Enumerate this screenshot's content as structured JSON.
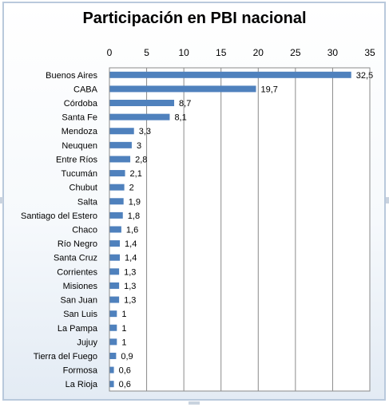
{
  "chart_data": {
    "type": "bar",
    "orientation": "horizontal",
    "title": "Participación en PBI nacional",
    "xlabel": "",
    "ylabel": "",
    "xlim": [
      0,
      35
    ],
    "x_ticks": [
      "0",
      "5",
      "10",
      "15",
      "20",
      "25",
      "30",
      "35"
    ],
    "x_axis_position": "top",
    "grid": true,
    "legend": "none",
    "bar_color": "#4f81bd",
    "categories": [
      "Buenos Aires",
      "CABA",
      "Córdoba",
      "Santa Fe",
      "Mendoza",
      "Neuquen",
      "Entre Ríos",
      "Tucumán",
      "Chubut",
      "Salta",
      "Santiago del Estero",
      "Chaco",
      "Río Negro",
      "Santa Cruz",
      "Corrientes",
      "Misiones",
      "San Juan",
      "San Luis",
      "La Pampa",
      "Jujuy",
      "Tierra del Fuego",
      "Formosa",
      "La Rioja"
    ],
    "values": [
      32.5,
      19.7,
      8.7,
      8.1,
      3.3,
      3,
      2.8,
      2.1,
      2,
      1.9,
      1.8,
      1.6,
      1.4,
      1.4,
      1.3,
      1.3,
      1.3,
      1,
      1,
      1,
      0.9,
      0.6,
      0.6
    ],
    "data_labels": [
      "32,5",
      "19,7",
      "8,7",
      "8,1",
      "3,3",
      "3",
      "2,8",
      "2,1",
      "2",
      "1,9",
      "1,8",
      "1,6",
      "1,4",
      "1,4",
      "1,3",
      "1,3",
      "1,3",
      "1",
      "1",
      "1",
      "0,9",
      "0,6",
      "0,6"
    ]
  }
}
